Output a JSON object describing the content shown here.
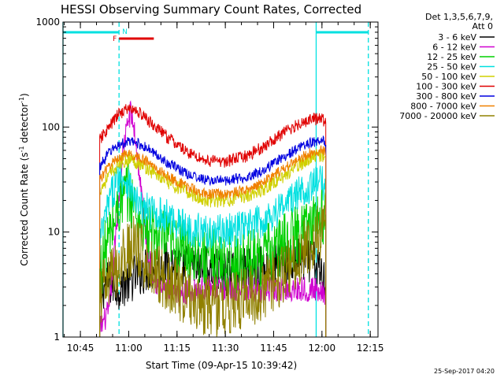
{
  "chart_data": {
    "type": "line",
    "title": "HESSI Observing Summary Count Rates, Corrected",
    "xlabel": "Start Time (09-Apr-15 10:39:42)",
    "ylabel": "Corrected Count Rate (s",
    "ylabel_sup1": "-1",
    "ylabel_mid": " detector",
    "ylabel_sup2": "-1",
    "ylabel_end": ")",
    "y_scale": "log",
    "ylim": [
      1,
      1000
    ],
    "xlim": [
      10.66,
      12.29
    ],
    "x_ticks": [
      {
        "value": 10.75,
        "label": "10:45"
      },
      {
        "value": 11.0,
        "label": "11:00"
      },
      {
        "value": 11.25,
        "label": "11:15"
      },
      {
        "value": 11.5,
        "label": "11:30"
      },
      {
        "value": 11.75,
        "label": "11:45"
      },
      {
        "value": 12.0,
        "label": "12:00"
      },
      {
        "value": 12.25,
        "label": "12:15"
      }
    ],
    "y_ticks": [
      {
        "value": 1,
        "label": "1"
      },
      {
        "value": 10,
        "label": "10"
      },
      {
        "value": 100,
        "label": "100"
      },
      {
        "value": 1000,
        "label": "1000"
      }
    ],
    "legend_header": [
      "Det 1,3,5,6,7,9,",
      "Att 0"
    ],
    "legend_placement": "right",
    "series": [
      {
        "name": "3 - 6 keV",
        "color": "#000000",
        "x": [
          10.85,
          10.87,
          10.9,
          10.95,
          11.0,
          11.05,
          11.1,
          11.15,
          11.2,
          11.3,
          11.4,
          11.5,
          11.6,
          11.7,
          11.8,
          11.9,
          11.95,
          12.0,
          12.02
        ],
        "y": [
          2.5,
          3,
          3.3,
          3,
          3.4,
          4,
          4.4,
          4.6,
          5,
          4.7,
          4.5,
          4,
          4.3,
          4.6,
          5,
          5.4,
          5.2,
          4,
          3.5
        ],
        "noise": 0.22
      },
      {
        "name": "6 - 12 keV",
        "color": "#d000d0",
        "x": [
          10.85,
          10.9,
          10.93,
          10.97,
          11.0,
          11.01,
          11.03,
          11.06,
          11.1,
          11.15,
          11.25,
          11.4,
          11.55,
          11.7,
          11.8,
          11.9,
          12.0,
          12.02
        ],
        "y": [
          1.2,
          1.8,
          8,
          60,
          120,
          140,
          90,
          30,
          6,
          3,
          2.5,
          3,
          2.9,
          2.8,
          2.8,
          2.9,
          2.8,
          2.6
        ],
        "noise": 0.12
      },
      {
        "name": "12 - 25 keV",
        "color": "#00d000",
        "x": [
          10.85,
          10.88,
          10.92,
          10.96,
          11.0,
          11.02,
          11.05,
          11.1,
          11.2,
          11.35,
          11.5,
          11.65,
          11.8,
          11.9,
          11.95,
          12.0,
          12.02
        ],
        "y": [
          4,
          7,
          12,
          20,
          24,
          20,
          13,
          9.5,
          8,
          6.3,
          5,
          5.5,
          7.5,
          10,
          13,
          15,
          14
        ],
        "noise": 0.3
      },
      {
        "name": "25 - 50 keV",
        "color": "#00e0e0",
        "x": [
          10.85,
          10.9,
          10.95,
          11.0,
          11.03,
          11.06,
          11.1,
          11.2,
          11.3,
          11.4,
          11.5,
          11.6,
          11.7,
          11.8,
          11.9,
          11.95,
          12.0,
          12.02
        ],
        "y": [
          8,
          20,
          35,
          30,
          20,
          17,
          16,
          14,
          11,
          10,
          10,
          11,
          13,
          18,
          25,
          28,
          30,
          28
        ],
        "noise": 0.17
      },
      {
        "name": "50 - 100 keV",
        "color": "#d0d000",
        "x": [
          10.85,
          10.9,
          10.95,
          11.0,
          11.05,
          11.1,
          11.2,
          11.3,
          11.4,
          11.5,
          11.6,
          11.7,
          11.8,
          11.9,
          11.95,
          12.0,
          12.02
        ],
        "y": [
          25,
          35,
          45,
          50,
          46,
          40,
          30,
          24,
          20,
          20,
          22,
          26,
          34,
          46,
          52,
          55,
          52
        ],
        "noise": 0.07
      },
      {
        "name": "100 - 300 keV",
        "color": "#e00000",
        "x": [
          10.85,
          10.9,
          10.95,
          11.0,
          11.05,
          11.1,
          11.2,
          11.3,
          11.4,
          11.5,
          11.6,
          11.7,
          11.8,
          11.9,
          11.95,
          12.0,
          12.02
        ],
        "y": [
          75,
          100,
          135,
          150,
          140,
          115,
          80,
          58,
          48,
          47,
          52,
          65,
          88,
          112,
          120,
          118,
          112
        ],
        "noise": 0.06
      },
      {
        "name": "300 - 800 keV",
        "color": "#0000e0",
        "x": [
          10.85,
          10.9,
          10.95,
          11.0,
          11.05,
          11.1,
          11.2,
          11.3,
          11.4,
          11.5,
          11.6,
          11.7,
          11.8,
          11.9,
          11.95,
          12.0,
          12.02
        ],
        "y": [
          42,
          58,
          68,
          72,
          70,
          62,
          46,
          36,
          31,
          31,
          33,
          39,
          52,
          66,
          72,
          74,
          72
        ],
        "noise": 0.05
      },
      {
        "name": "800 - 7000 keV",
        "color": "#f08000",
        "x": [
          10.85,
          10.9,
          10.95,
          11.0,
          11.05,
          11.1,
          11.2,
          11.3,
          11.4,
          11.5,
          11.6,
          11.7,
          11.8,
          11.9,
          11.95,
          12.0,
          12.02
        ],
        "y": [
          32,
          43,
          52,
          55,
          52,
          46,
          34,
          27,
          23,
          23,
          25,
          30,
          40,
          52,
          58,
          60,
          58
        ],
        "noise": 0.05
      },
      {
        "name": "7000 - 20000 keV",
        "color": "#908000",
        "x": [
          10.85,
          10.88,
          10.92,
          10.96,
          11.0,
          11.03,
          11.07,
          11.1,
          11.2,
          11.3,
          11.4,
          11.5,
          11.6,
          11.7,
          11.8,
          11.9,
          11.95,
          12.0,
          12.02
        ],
        "y": [
          2.5,
          3,
          4,
          5.5,
          6.5,
          7.5,
          6,
          5,
          3.5,
          2.5,
          2,
          2,
          2.3,
          2.8,
          4,
          6.5,
          8.5,
          9.5,
          9
        ],
        "noise": 0.3
      }
    ],
    "flag_bars": [
      {
        "label": "F",
        "color": "#e00000",
        "x_start": 10.95,
        "x_end": 11.13
      },
      {
        "label": "N",
        "color": "#00e0e0",
        "x_start": 10.66,
        "x_end": 10.95
      },
      {
        "label": "",
        "color": "#00e0e0",
        "x_start": 11.97,
        "x_end": 12.24
      }
    ],
    "vertical_lines": [
      {
        "x": 10.66,
        "color": "#00e0e0",
        "style": "solid"
      },
      {
        "x": 10.95,
        "color": "#00e0e0",
        "style": "dashed"
      },
      {
        "x": 11.97,
        "color": "#00e0e0",
        "style": "solid"
      },
      {
        "x": 12.24,
        "color": "#00e0e0",
        "style": "dashed"
      }
    ],
    "data_gap_before": 10.85,
    "data_gap_after": 12.02,
    "timestamp": "25-Sep-2017 04:20"
  }
}
